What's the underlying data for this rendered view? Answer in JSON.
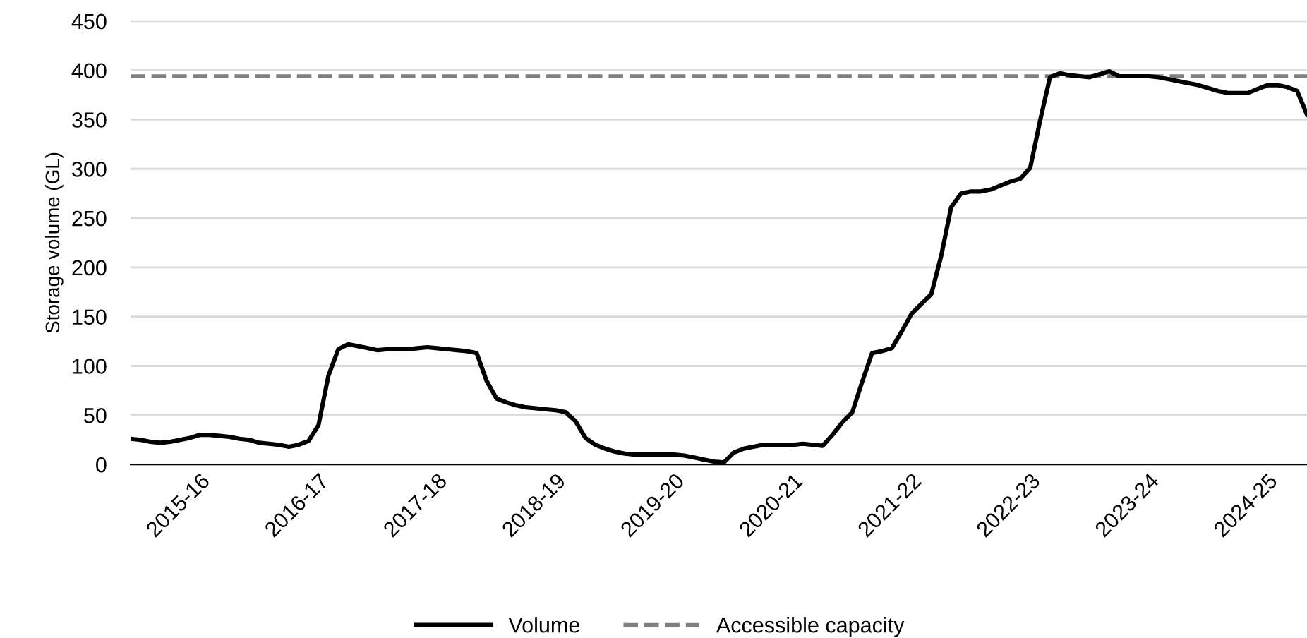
{
  "chart_data": {
    "type": "line",
    "ylabel": "Storage volume (GL)",
    "categories": [
      null,
      null,
      null,
      null,
      null,
      null,
      null,
      "2015-16",
      null,
      null,
      null,
      null,
      null,
      null,
      null,
      null,
      null,
      null,
      null,
      "2016-17",
      null,
      null,
      null,
      null,
      null,
      null,
      null,
      null,
      null,
      null,
      null,
      "2017-18",
      null,
      null,
      null,
      null,
      null,
      null,
      null,
      null,
      null,
      null,
      null,
      "2018-19",
      null,
      null,
      null,
      null,
      null,
      null,
      null,
      null,
      null,
      null,
      null,
      "2019-20",
      null,
      null,
      null,
      null,
      null,
      null,
      null,
      null,
      null,
      null,
      null,
      "2020-21",
      null,
      null,
      null,
      null,
      null,
      null,
      null,
      null,
      null,
      null,
      null,
      "2021-22",
      null,
      null,
      null,
      null,
      null,
      null,
      null,
      null,
      null,
      null,
      null,
      "2022-23",
      null,
      null,
      null,
      null,
      null,
      null,
      null,
      null,
      null,
      null,
      null,
      "2023-24",
      null,
      null,
      null,
      null,
      null,
      null,
      null,
      null,
      null,
      null,
      null,
      "2024-25",
      null,
      null,
      null,
      null
    ],
    "series": [
      {
        "name": "Volume",
        "color": "#000000",
        "values": [
          26,
          25,
          23,
          22,
          23,
          25,
          27,
          30,
          30,
          29,
          28,
          26,
          25,
          22,
          21,
          20,
          18,
          20,
          24,
          40,
          90,
          117,
          122,
          120,
          118,
          116,
          117,
          117,
          117,
          118,
          119,
          118,
          117,
          116,
          115,
          113,
          85,
          67,
          63,
          60,
          58,
          57,
          56,
          55,
          53,
          44,
          27,
          20,
          16,
          13,
          11,
          10,
          10,
          10,
          10,
          10,
          9,
          7,
          5,
          3,
          2,
          12,
          16,
          18,
          20,
          20,
          20,
          20,
          21,
          20,
          19,
          30,
          43,
          53,
          84,
          113,
          115,
          118,
          135,
          153,
          163,
          173,
          212,
          261,
          275,
          277,
          277,
          279,
          283,
          287,
          290,
          301,
          349,
          393,
          397,
          395,
          394,
          393,
          396,
          399,
          394,
          394,
          394,
          394,
          393,
          391,
          389,
          387,
          385,
          382,
          379,
          377,
          377,
          377,
          381,
          385,
          385,
          383,
          379,
          355
        ]
      }
    ],
    "ref_lines": [
      {
        "axis": "y",
        "value": 394,
        "label": "Accessible capacity",
        "color": "#808080",
        "line_style": "dashed"
      }
    ],
    "ylim": [
      0,
      450
    ],
    "yticks": [
      0,
      50,
      100,
      150,
      200,
      250,
      300,
      350,
      400,
      450
    ],
    "grid": "y",
    "legend": "bottom",
    "line_style": "solid",
    "marker": "none"
  }
}
